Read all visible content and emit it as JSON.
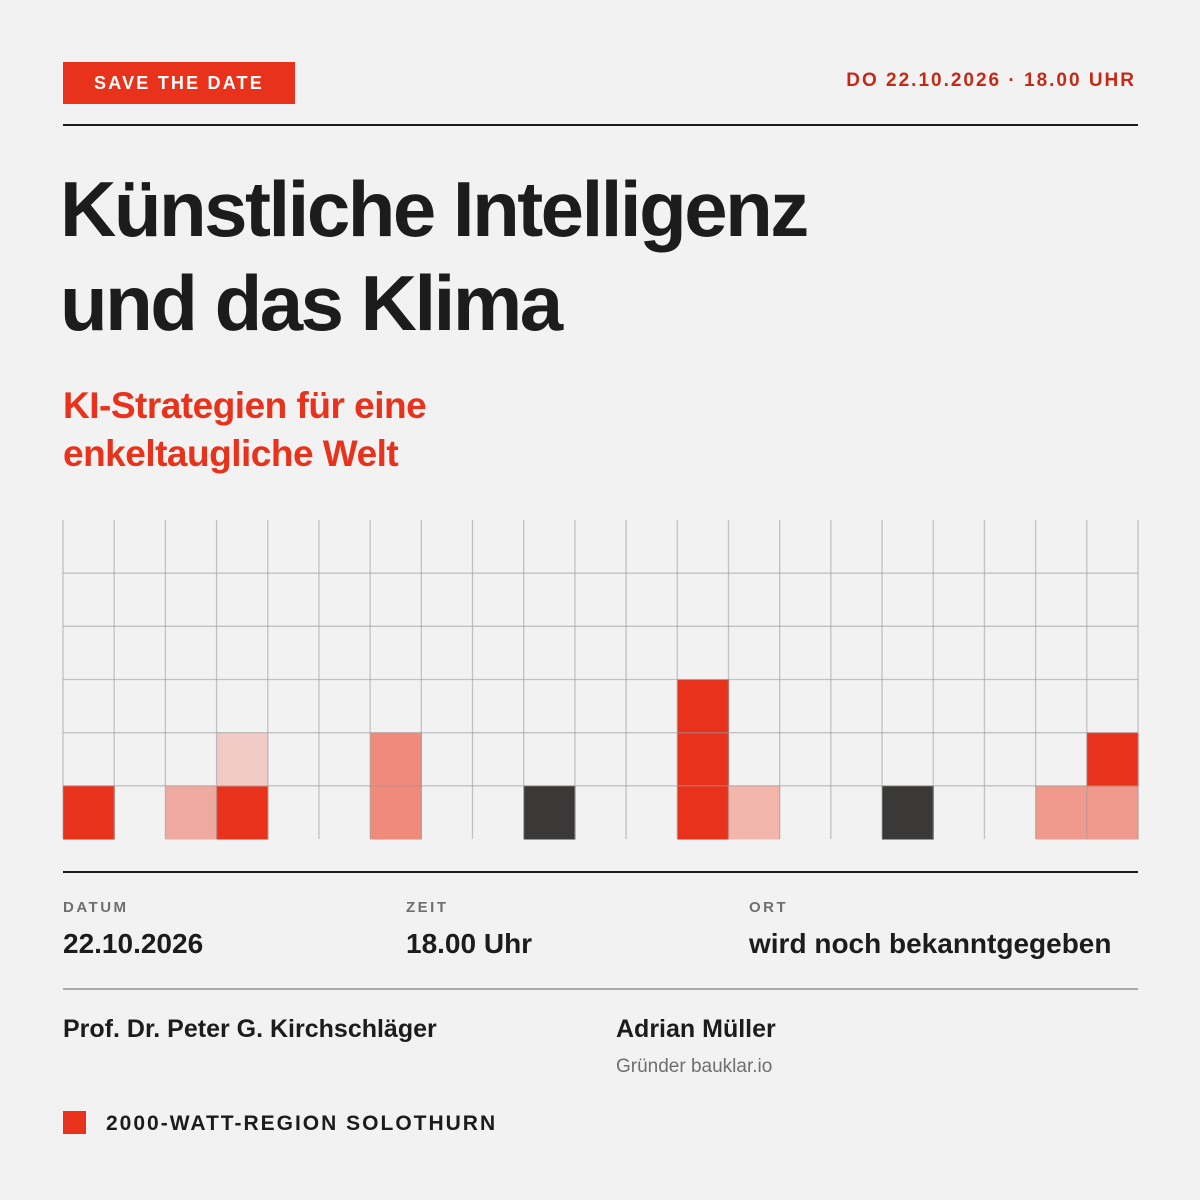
{
  "badge": "SAVE THE DATE",
  "top_date": "DO 22.10.2026 · 18.00 UHR",
  "title_lines": [
    "Künstliche Intelligenz",
    "und das Klima"
  ],
  "subtitle_lines": [
    "KI-Strategien für eine",
    "enkeltaugliche Welt"
  ],
  "info": {
    "datum_label": "DATUM",
    "datum_value": "22.10.2026",
    "zeit_label": "ZEIT",
    "zeit_value": "18.00 Uhr",
    "ort_label": "ORT",
    "ort_value": "wird noch bekanntgegeben"
  },
  "speakers": [
    {
      "name": "Prof. Dr. Peter G. Kirchschläger",
      "role": ""
    },
    {
      "name": "Adrian Müller",
      "role": "Gründer bauklar.io"
    }
  ],
  "footer": "2000-WATT-REGION SOLOTHURN",
  "colors": {
    "accent": "#e8321b",
    "dark": "#3b3938",
    "text": "#1c1c1c",
    "muted": "#6f6f6f",
    "background": "#f2f2f2"
  },
  "grid_pattern": {
    "columns": 21,
    "rows": 6,
    "filled_cells": [
      {
        "col": 0,
        "row": 0,
        "color": "#e8321b"
      },
      {
        "col": 2,
        "row": 0,
        "color": "#efaa9f"
      },
      {
        "col": 3,
        "row": 0,
        "color": "#e8321b"
      },
      {
        "col": 3,
        "row": 1,
        "color": "#f1ccc6"
      },
      {
        "col": 6,
        "row": 0,
        "color": "#f08a7b"
      },
      {
        "col": 6,
        "row": 1,
        "color": "#f08a7b"
      },
      {
        "col": 9,
        "row": 0,
        "color": "#3b3938"
      },
      {
        "col": 12,
        "row": 0,
        "color": "#e8321b"
      },
      {
        "col": 12,
        "row": 1,
        "color": "#e8321b"
      },
      {
        "col": 12,
        "row": 2,
        "color": "#e8321b"
      },
      {
        "col": 13,
        "row": 0,
        "color": "#f2b6ad"
      },
      {
        "col": 16,
        "row": 0,
        "color": "#3b3938"
      },
      {
        "col": 19,
        "row": 0,
        "color": "#ef9a8c"
      },
      {
        "col": 20,
        "row": 0,
        "color": "#ef9a8c"
      },
      {
        "col": 20,
        "row": 1,
        "color": "#e8321b"
      }
    ]
  }
}
